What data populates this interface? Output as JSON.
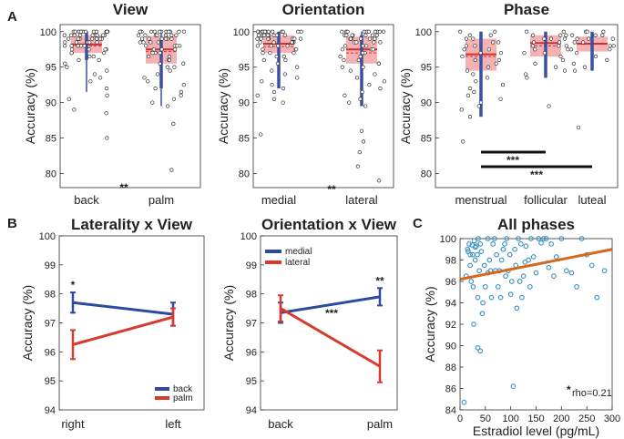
{
  "panel_labels": [
    "A",
    "B",
    "C"
  ],
  "chart_data": [
    {
      "type": "box",
      "title": "View",
      "ylabel": "Accuracy (%)",
      "ylim": [
        78,
        101
      ],
      "yticks": [
        80,
        85,
        90,
        95,
        100
      ],
      "categories": [
        "back",
        "palm"
      ],
      "boxes": [
        {
          "q1": 97.0,
          "median": 98.2,
          "q3": 99.5,
          "mean": 98.0,
          "ci": [
            96.0,
            100.0
          ],
          "whisk": [
            91.5,
            100.0
          ]
        },
        {
          "q1": 95.5,
          "median": 97.5,
          "q3": 99.4,
          "mean": 97.2,
          "ci": [
            92.0,
            99.0
          ],
          "whisk": [
            89.5,
            100.0
          ]
        }
      ],
      "points": [
        [
          100,
          100,
          100,
          100,
          100,
          100,
          100,
          100,
          100,
          100,
          100,
          100,
          99.5,
          99.5,
          99.5,
          99.5,
          99.5,
          99.5,
          99.5,
          99.5,
          99.5,
          99,
          99,
          99,
          99,
          99,
          99,
          99,
          99,
          98.5,
          98.5,
          98.5,
          98.5,
          98.5,
          98.5,
          98,
          98,
          98,
          98,
          98,
          97.5,
          97.5,
          97.5,
          97.5,
          97,
          97,
          97,
          96.5,
          96.5,
          96,
          96,
          95.5,
          95,
          94.5,
          94,
          93.5,
          93,
          92,
          91,
          90.5,
          89,
          88.5,
          85
        ],
        [
          100,
          100,
          100,
          100,
          100,
          100,
          100,
          100,
          100,
          100,
          100,
          99.5,
          99.5,
          99.5,
          99.5,
          99.5,
          99.5,
          99.5,
          99,
          99,
          99,
          99,
          99,
          99,
          98.5,
          98.5,
          98.5,
          98.5,
          98,
          98,
          98,
          98,
          97.5,
          97.5,
          97.5,
          97,
          97,
          97,
          96.5,
          96.5,
          96,
          96,
          95.5,
          95.5,
          95,
          95,
          94.5,
          94,
          93.5,
          93,
          92.5,
          92,
          91.5,
          91,
          90.5,
          90,
          89.5,
          87,
          80.5
        ]
      ],
      "annotations": [
        {
          "text": "**",
          "between": [
            "back",
            "palm"
          ]
        }
      ]
    },
    {
      "type": "box",
      "title": "Orientation",
      "ylabel": "Accuracy (%)",
      "ylim": [
        78,
        101
      ],
      "yticks": [
        80,
        85,
        90,
        95,
        100
      ],
      "categories": [
        "medial",
        "lateral"
      ],
      "boxes": [
        {
          "q1": 97.0,
          "median": 98.3,
          "q3": 99.5,
          "mean": 97.9,
          "ci": [
            92.0,
            100.0
          ],
          "whisk": [
            92.0,
            100.0
          ]
        },
        {
          "q1": 95.5,
          "median": 97.5,
          "q3": 99.3,
          "mean": 97.0,
          "ci": [
            89.5,
            99.5
          ],
          "whisk": [
            89.5,
            100.0
          ]
        }
      ],
      "points": [
        [
          100,
          100,
          100,
          100,
          100,
          100,
          100,
          100,
          100,
          100,
          100,
          100,
          99.5,
          99.5,
          99.5,
          99.5,
          99.5,
          99.5,
          99.5,
          99.5,
          99,
          99,
          99,
          99,
          99,
          99,
          99,
          98.5,
          98.5,
          98.5,
          98.5,
          98.5,
          98,
          98,
          98,
          98,
          97.5,
          97.5,
          97.5,
          97,
          97,
          97,
          96.5,
          96.5,
          96,
          96,
          95.5,
          95,
          94.5,
          94,
          93.5,
          93,
          92.5,
          92,
          91.5,
          91,
          90.5,
          90,
          85.5
        ],
        [
          100,
          100,
          100,
          100,
          100,
          100,
          100,
          100,
          100,
          100,
          99.5,
          99.5,
          99.5,
          99.5,
          99.5,
          99.5,
          99.5,
          99,
          99,
          99,
          99,
          99,
          99,
          98.5,
          98.5,
          98.5,
          98.5,
          98,
          98,
          98,
          97.5,
          97.5,
          97.5,
          97,
          97,
          96.5,
          96.5,
          96,
          96,
          95.5,
          95.5,
          95,
          95,
          94.5,
          94,
          93.5,
          93,
          92.5,
          92,
          91.5,
          91,
          90.5,
          90,
          89.5,
          86,
          84.5,
          83,
          81,
          79
        ]
      ],
      "annotations": [
        {
          "text": "**",
          "between": [
            "medial",
            "lateral"
          ]
        }
      ]
    },
    {
      "type": "box",
      "title": "Phase",
      "ylabel": "Accuracy (%)",
      "ylim": [
        78,
        101
      ],
      "yticks": [
        80,
        85,
        90,
        95,
        100
      ],
      "categories": [
        "menstrual",
        "follicular",
        "luteal"
      ],
      "boxes": [
        {
          "q1": 94.5,
          "median": 96.8,
          "q3": 99.0,
          "mean": 96.5,
          "ci": [
            88.0,
            100.0
          ],
          "whisk": [
            88.0,
            100.0
          ]
        },
        {
          "q1": 96.5,
          "median": 98.4,
          "q3": 99.5,
          "mean": 98.0,
          "ci": [
            93.5,
            100.0
          ],
          "whisk": [
            93.5,
            100.0
          ]
        },
        {
          "q1": 97.2,
          "median": 98.3,
          "q3": 99.3,
          "mean": 98.3,
          "ci": [
            94.5,
            100.0
          ],
          "whisk": [
            94.5,
            100.0
          ]
        }
      ],
      "points": [
        [
          100,
          100,
          99.5,
          99.5,
          99,
          99,
          98.5,
          98.5,
          98,
          98,
          97.5,
          97.5,
          97,
          97,
          96.5,
          96,
          96,
          95.5,
          95,
          94.5,
          94,
          93.5,
          93,
          92.5,
          92,
          91.5,
          91,
          90.5,
          90,
          89.5,
          89,
          88,
          84.5
        ],
        [
          100,
          100,
          99.5,
          99.5,
          99.5,
          99,
          99,
          99,
          98.5,
          98.5,
          98,
          98,
          98,
          97.5,
          97.5,
          97,
          97,
          96.5,
          96,
          95.5,
          95,
          94.5,
          94,
          93.5,
          89.5
        ],
        [
          100,
          100,
          100,
          99.5,
          99.5,
          99.5,
          99,
          99,
          99,
          98.5,
          98.5,
          98,
          98,
          97.5,
          97.5,
          97,
          96.5,
          96,
          95.5,
          95,
          94.5,
          86.5
        ]
      ],
      "annotations": [
        {
          "text": "***",
          "between": [
            "menstrual",
            "follicular"
          ]
        },
        {
          "text": "***",
          "between": [
            "menstrual",
            "luteal"
          ]
        }
      ]
    },
    {
      "type": "line",
      "title": "Laterality x View",
      "ylabel": "Accuracy (%)",
      "ylim": [
        94,
        100
      ],
      "yticks": [
        94,
        95,
        96,
        97,
        98,
        99,
        100
      ],
      "categories": [
        "right",
        "left"
      ],
      "series": [
        {
          "name": "back",
          "color": "#2E4A9E",
          "values": [
            97.7,
            97.3
          ],
          "err": [
            0.35,
            0.4
          ]
        },
        {
          "name": "palm",
          "color": "#D63B2F",
          "values": [
            96.25,
            97.2
          ],
          "err": [
            0.5,
            0.3
          ]
        }
      ],
      "legend": "bottom-right",
      "annotations": [
        {
          "text": "*",
          "at": "right"
        }
      ]
    },
    {
      "type": "line",
      "title": "Orientation x View",
      "ylabel": "Accuracy (%)",
      "ylim": [
        94,
        100
      ],
      "yticks": [
        94,
        95,
        96,
        97,
        98,
        99,
        100
      ],
      "categories": [
        "back",
        "palm"
      ],
      "series": [
        {
          "name": "medial",
          "color": "#2E4A9E",
          "values": [
            97.35,
            97.9
          ],
          "err": [
            0.35,
            0.3
          ]
        },
        {
          "name": "lateral",
          "color": "#D63B2F",
          "values": [
            97.5,
            95.5
          ],
          "err": [
            0.45,
            0.55
          ]
        }
      ],
      "legend": "top-left",
      "annotations": [
        {
          "text": "**",
          "at": "palm"
        },
        {
          "text": "***",
          "at": "lateral slope"
        }
      ]
    },
    {
      "type": "scatter",
      "title": "All phases",
      "xlabel": "Estradiol level (pg/mL)",
      "ylabel": "Accuracy (%)",
      "xlim": [
        0,
        300
      ],
      "ylim": [
        84,
        100
      ],
      "xticks": [
        0,
        50,
        100,
        150,
        200,
        250,
        300
      ],
      "yticks": [
        84,
        86,
        88,
        90,
        92,
        94,
        96,
        98,
        100
      ],
      "fit": {
        "color": "#D2691E",
        "x": [
          0,
          300
        ],
        "y": [
          96.2,
          99.0
        ]
      },
      "annotations": [
        {
          "text": "*",
          "sub": "rho=0.21"
        }
      ],
      "x": [
        8,
        12,
        15,
        16,
        18,
        20,
        20,
        22,
        24,
        25,
        26,
        27,
        28,
        30,
        30,
        32,
        34,
        35,
        35,
        36,
        38,
        40,
        40,
        42,
        44,
        45,
        48,
        50,
        55,
        55,
        58,
        60,
        62,
        65,
        68,
        70,
        72,
        75,
        78,
        80,
        82,
        85,
        88,
        90,
        92,
        95,
        98,
        100,
        102,
        105,
        108,
        110,
        112,
        115,
        118,
        120,
        122,
        125,
        128,
        130,
        135,
        138,
        140,
        145,
        150,
        155,
        160,
        165,
        170,
        175,
        180,
        185,
        190,
        200,
        210,
        220,
        230,
        240,
        250,
        260,
        270,
        285
      ],
      "y": [
        84.7,
        96.5,
        99.0,
        98.8,
        99.5,
        98.5,
        97.5,
        96.0,
        99.4,
        98.5,
        95.5,
        92.0,
        99.8,
        99.2,
        98.0,
        99.3,
        98.5,
        89.8,
        94.5,
        100,
        97.0,
        99.5,
        89.5,
        98.8,
        93.0,
        94.0,
        97.5,
        95.5,
        100,
        96.8,
        98.0,
        97.0,
        94.5,
        99.5,
        100,
        97.0,
        98.5,
        95.5,
        97.0,
        94.5,
        98.0,
        99.0,
        99.5,
        96.5,
        100,
        97.0,
        98.5,
        94.8,
        96.0,
        86.2,
        99.0,
        97.5,
        93.5,
        100,
        96.0,
        99.5,
        94.5,
        96.5,
        97.8,
        99.3,
        98.0,
        95.5,
        100,
        98.3,
        96.8,
        100,
        99.6,
        100,
        100,
        97.3,
        99.5,
        96.5,
        98.3,
        100,
        97.0,
        96.8,
        95.5,
        100,
        98.5,
        97.5,
        94.5,
        97.0
      ]
    }
  ]
}
